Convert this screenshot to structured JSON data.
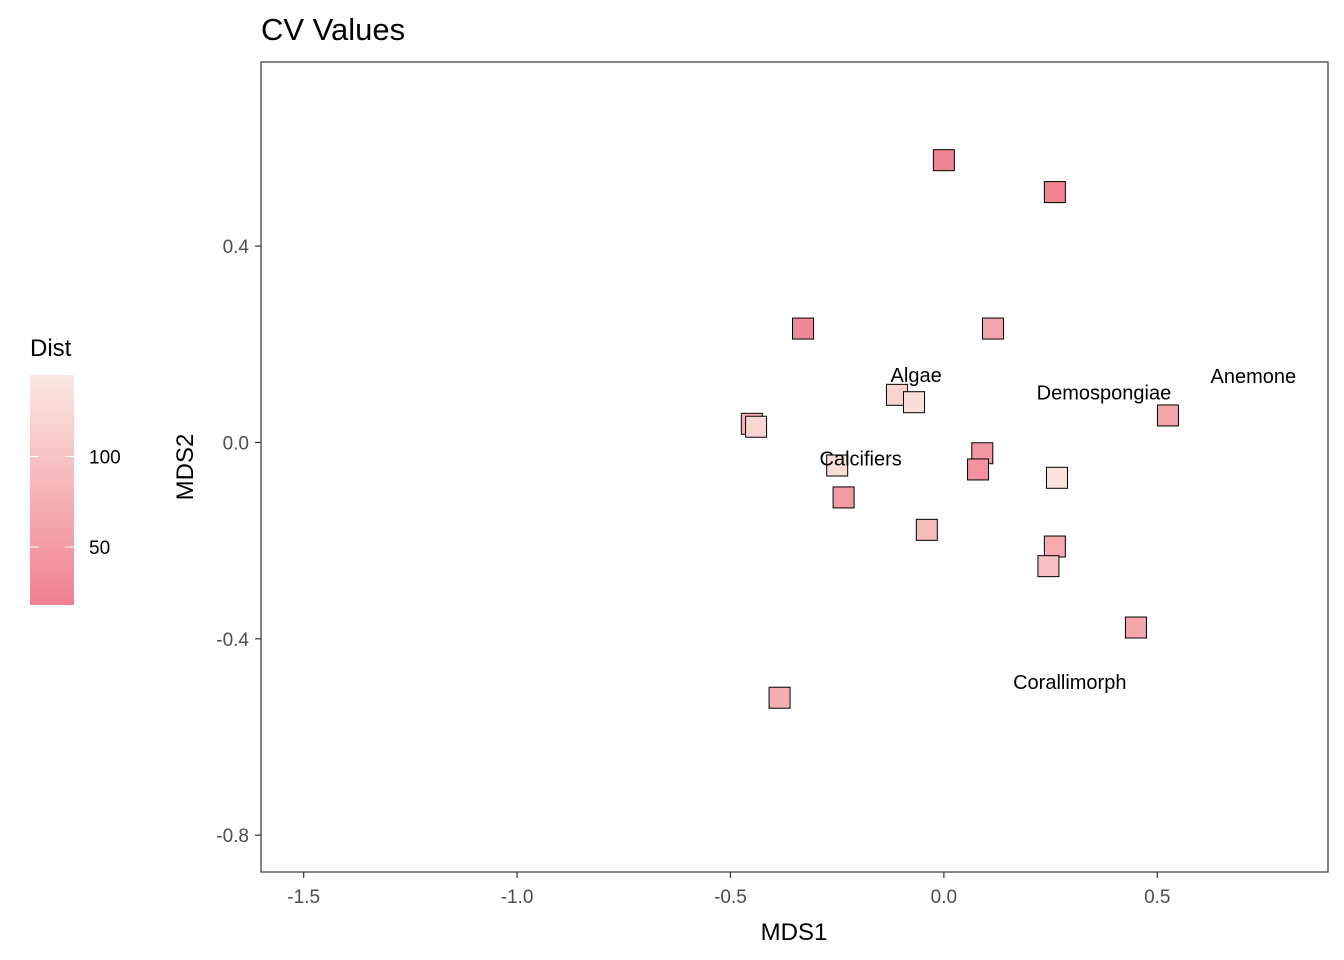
{
  "chart_data": {
    "type": "scatter",
    "title": "CV Values",
    "xlabel": "MDS1",
    "ylabel": "MDS2",
    "xlim": [
      -1.6,
      0.9
    ],
    "ylim": [
      -0.875,
      0.775
    ],
    "x_ticks": [
      -1.5,
      -1.0,
      -0.5,
      0.0,
      0.5
    ],
    "x_tick_labels": [
      "-1.5",
      "-1.0",
      "-0.5",
      "0.0",
      "0.5"
    ],
    "y_ticks": [
      -0.8,
      -0.4,
      0.0,
      0.4
    ],
    "y_tick_labels": [
      "-0.8",
      "-0.4",
      "0.0",
      "0.4"
    ],
    "grid": false,
    "marker": "square",
    "color_scale": {
      "name": "Dist",
      "low_color": "#f08090",
      "high_color": "#fbe9e1",
      "min": 18,
      "max": 145,
      "breaks": [
        50,
        100
      ],
      "break_labels": [
        "50",
        "100"
      ],
      "legend_position": "left"
    },
    "points": [
      {
        "x": 0.0,
        "y": 0.575,
        "dist": 22
      },
      {
        "x": 0.26,
        "y": 0.51,
        "dist": 24
      },
      {
        "x": -0.33,
        "y": 0.232,
        "dist": 30
      },
      {
        "x": 0.115,
        "y": 0.232,
        "dist": 62
      },
      {
        "x": -0.11,
        "y": 0.097,
        "dist": 118
      },
      {
        "x": -0.07,
        "y": 0.082,
        "dist": 132
      },
      {
        "x": -0.45,
        "y": 0.038,
        "dist": 80
      },
      {
        "x": -0.44,
        "y": 0.032,
        "dist": 122
      },
      {
        "x": 0.525,
        "y": 0.055,
        "dist": 62
      },
      {
        "x": 0.09,
        "y": -0.022,
        "dist": 46
      },
      {
        "x": 0.08,
        "y": -0.055,
        "dist": 40
      },
      {
        "x": 0.265,
        "y": -0.072,
        "dist": 138
      },
      {
        "x": -0.25,
        "y": -0.047,
        "dist": 130
      },
      {
        "x": -0.235,
        "y": -0.112,
        "dist": 52
      },
      {
        "x": -0.04,
        "y": -0.178,
        "dist": 90
      },
      {
        "x": 0.26,
        "y": -0.212,
        "dist": 70
      },
      {
        "x": 0.245,
        "y": -0.252,
        "dist": 96
      },
      {
        "x": 0.45,
        "y": -0.377,
        "dist": 64
      },
      {
        "x": -0.385,
        "y": -0.52,
        "dist": 74
      }
    ],
    "annotations": [
      {
        "text": "Algae",
        "x": -0.065,
        "y": 0.137
      },
      {
        "text": "Demospongiae",
        "x": 0.375,
        "y": 0.102
      },
      {
        "text": "Anemone",
        "x": 0.725,
        "y": 0.135
      },
      {
        "text": "Calcifiers",
        "x": -0.195,
        "y": -0.033
      },
      {
        "text": "Corallimorph",
        "x": 0.295,
        "y": -0.488
      }
    ]
  }
}
